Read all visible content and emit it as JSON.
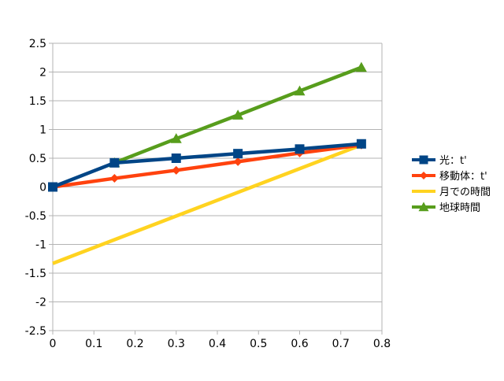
{
  "chart_data": {
    "type": "line",
    "title": "",
    "xlabel": "",
    "ylabel": "",
    "xlim": [
      0,
      0.8
    ],
    "ylim": [
      -2.5,
      2.5
    ],
    "xticks": [
      "0",
      "0.1",
      "0.2",
      "0.3",
      "0.4",
      "0.5",
      "0.6",
      "0.7",
      "0.8"
    ],
    "yticks": [
      "2.5",
      "2",
      "1.5",
      "1",
      "0.5",
      "0",
      "-0.5",
      "-1",
      "-1.5",
      "-2",
      "-2.5"
    ],
    "grid": "horizontal",
    "legend_position": "right",
    "series": [
      {
        "name": "光：t'",
        "color": "#004586",
        "marker": "square",
        "x": [
          0,
          0.15,
          0.3,
          0.45,
          0.6,
          0.75
        ],
        "y": [
          0,
          0.42,
          0.5,
          0.58,
          0.66,
          0.75
        ]
      },
      {
        "name": "移動体：t'",
        "color": "#ff420e",
        "marker": "diamond",
        "x": [
          0,
          0.15,
          0.3,
          0.45,
          0.6,
          0.75
        ],
        "y": [
          0,
          0.15,
          0.29,
          0.44,
          0.59,
          0.73
        ]
      },
      {
        "name": "月での時間",
        "color": "#ffd320",
        "marker": "none",
        "x": [
          0,
          0.75
        ],
        "y": [
          -1.33,
          0.73
        ]
      },
      {
        "name": "地球時間",
        "color": "#579d1c",
        "marker": "triangle",
        "x": [
          0.15,
          0.3,
          0.45,
          0.6,
          0.75
        ],
        "y": [
          0.42,
          0.84,
          1.25,
          1.67,
          2.08
        ]
      }
    ]
  }
}
